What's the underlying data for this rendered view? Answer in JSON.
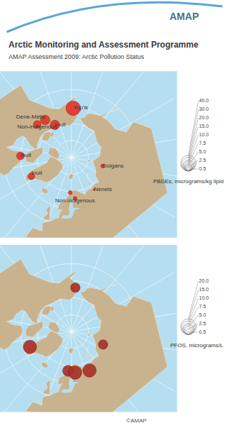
{
  "header": {
    "logo": "AMAP",
    "title": "Arctic Monitoring and Assessment Programme",
    "subtitle": "AMAP Assessment 2009: Arctic Pollution Status"
  },
  "chart_data": [
    {
      "type": "bubble_map",
      "color": "#e0372c",
      "tick_labels": false,
      "size_title": "PBDEs, micrograms/kg lipid",
      "size_ticks": [
        {
          "value": 40,
          "label": "40.0"
        },
        {
          "value": 30,
          "label": "30.0"
        },
        {
          "value": 20,
          "label": "20.0"
        },
        {
          "value": 15,
          "label": "15.0"
        },
        {
          "value": 10,
          "label": "10.0"
        },
        7.5,
        {
          "value": 5,
          "label": "5.0"
        },
        2.5,
        0.5
      ],
      "points": [
        {
          "label": "Yup'ik",
          "lon": -162,
          "lat": 61,
          "value": 35
        },
        {
          "label": "Inuit",
          "lon": -133,
          "lat": 68.5,
          "value": 15
        },
        {
          "label": "Dene-Métis",
          "lon": -125,
          "lat": 63,
          "value": 15
        },
        {
          "label": "Non-indigenous",
          "lon": -114,
          "lat": 62,
          "value": 10
        },
        {
          "label": "Inuit",
          "lon": -72,
          "lat": 60,
          "value": 10
        },
        {
          "label": "Inuit",
          "lon": -45,
          "lat": 64,
          "value": 7.5
        },
        {
          "label": "Dolgans",
          "lon": 95,
          "lat": 71,
          "value": 2.5
        },
        {
          "label": "Nenets",
          "lon": 55,
          "lat": 67,
          "value": 0.5
        },
        {
          "label": null,
          "lon": 18,
          "lat": 69.5,
          "value": 2.5
        },
        {
          "label": "Non-indigenous",
          "lon": 25,
          "lat": 66,
          "value": 2.5
        }
      ]
    },
    {
      "type": "bubble_map",
      "color": "#a8322a",
      "tick_labels": false,
      "size_title": "PFOS, micrograms/L",
      "size_ticks": [
        {
          "value": 20,
          "label": "20.0"
        },
        {
          "value": 15,
          "label": "15.0"
        },
        {
          "value": 10,
          "label": "10.0"
        },
        7.5,
        {
          "value": 5,
          "label": "5.0"
        },
        2.5,
        0.5
      ],
      "points": [
        {
          "label": null,
          "lon": -165,
          "lat": 64,
          "value": 7.5
        },
        {
          "label": null,
          "lon": -50,
          "lat": 64,
          "value": 15
        },
        {
          "label": null,
          "lon": 88,
          "lat": 70,
          "value": 7.5
        },
        {
          "label": null,
          "lon": 45,
          "lat": 65,
          "value": 15
        },
        {
          "label": null,
          "lon": 15,
          "lat": 67,
          "value": 10
        },
        {
          "label": null,
          "lon": 25,
          "lat": 66,
          "value": 15
        }
      ]
    }
  ],
  "footer": "©AMAP"
}
